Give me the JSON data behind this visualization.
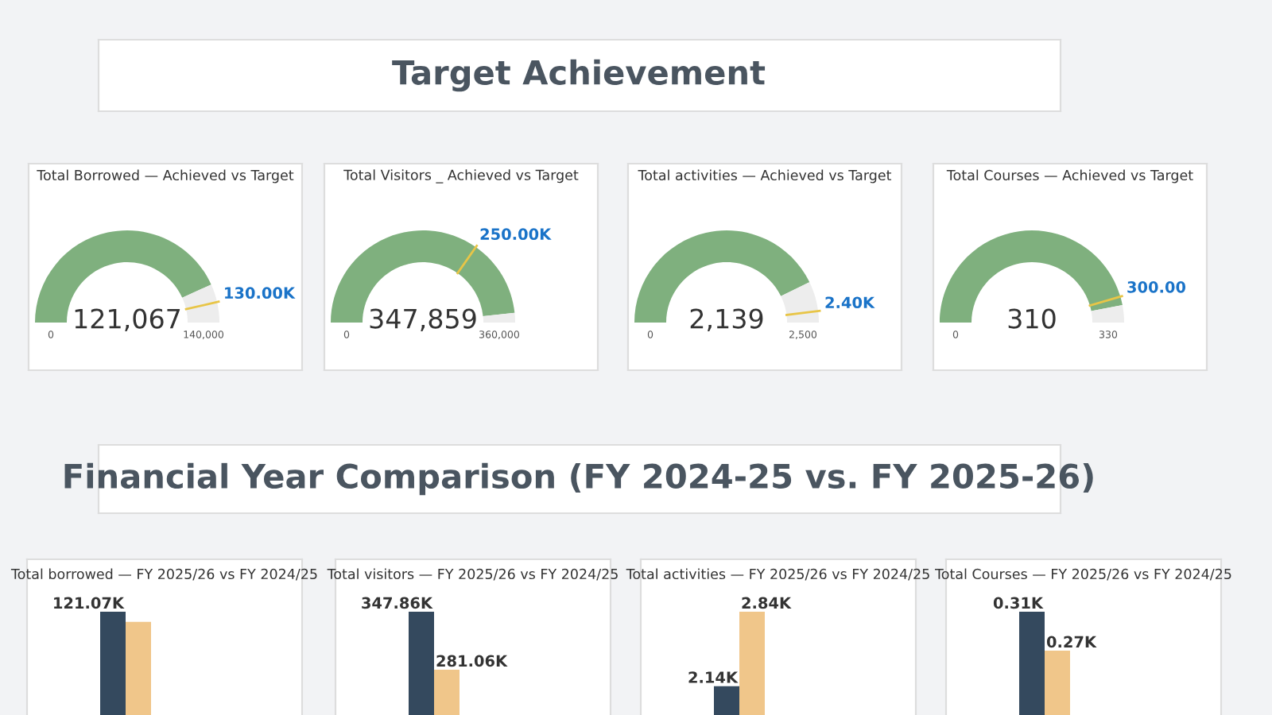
{
  "chart_data": [
    {
      "type": "other",
      "title": "Target Achievement"
    },
    {
      "type": "donut",
      "title": "Total Borrowed — Achieved vs Target",
      "categories": [
        null,
        null,
        null
      ],
      "values": [
        86.48,
        6.38,
        7.14
      ],
      "colors": [
        "#7fb07e",
        "#ededed",
        "#ededed"
      ],
      "annotations": [
        "121,067",
        "0",
        "140,000",
        "130.00K"
      ]
    },
    {
      "type": "donut",
      "title": "Total Visitors _ Achieved vs Target",
      "categories": [
        null,
        null,
        null
      ],
      "values": [
        69.44,
        27.19,
        3.37
      ],
      "colors": [
        "#7fb07e",
        "#7fb07e",
        "#ededed"
      ],
      "annotations": [
        "347,859",
        "0",
        "360,000",
        "250.00K"
      ]
    },
    {
      "type": "donut",
      "title": "Total activities — Achieved vs Target",
      "categories": [
        null,
        null,
        null
      ],
      "values": [
        85.56,
        10.44,
        4.0
      ],
      "colors": [
        "#7fb07e",
        "#ededed",
        "#ededed"
      ],
      "annotations": [
        "2,139",
        "0",
        "2,500",
        "2.40K"
      ]
    },
    {
      "type": "donut",
      "title": "Total Courses — Achieved vs Target",
      "categories": [
        null,
        null,
        null
      ],
      "values": [
        90.91,
        3.03,
        6.06
      ],
      "colors": [
        "#7fb07e",
        "#7fb07e",
        "#ededed"
      ],
      "annotations": [
        "310",
        "0",
        "330",
        "300.00"
      ]
    },
    {
      "type": "other",
      "title": "Financial Year Comparison (FY 2024-25 vs. FY 2025-26)"
    },
    {
      "type": "bar",
      "title": "Total borrowed — FY 2025/26 vs FY 2024/25",
      "categories": [
        null
      ],
      "tick_labels": false,
      "series": [
        {
          "color": "#34495e",
          "values": [
            121.07
          ],
          "value_labels": [
            "121.07K"
          ]
        },
        {
          "color": "#f0c68a",
          "values": [
            117
          ],
          "value_labels": [
            null
          ]
        }
      ]
    },
    {
      "type": "bar",
      "title": "Total visitors — FY 2025/26 vs FY 2024/25",
      "categories": [
        null
      ],
      "tick_labels": false,
      "series": [
        {
          "color": "#34495e",
          "values": [
            347.86
          ],
          "value_labels": [
            "347.86K"
          ]
        },
        {
          "color": "#f0c68a",
          "values": [
            281.06
          ],
          "value_labels": [
            "281.06K"
          ]
        }
      ]
    },
    {
      "type": "bar",
      "title": "Total activities — FY 2025/26 vs FY 2024/25",
      "categories": [
        null
      ],
      "tick_labels": false,
      "series": [
        {
          "color": "#34495e",
          "values": [
            2.14
          ],
          "value_labels": [
            "2.14K"
          ]
        },
        {
          "color": "#f0c68a",
          "values": [
            2.84
          ],
          "value_labels": [
            "2.84K"
          ]
        }
      ]
    },
    {
      "type": "bar",
      "title": "Total Courses — FY 2025/26 vs FY 2024/25",
      "categories": [
        null
      ],
      "tick_labels": false,
      "series": [
        {
          "color": "#34495e",
          "values": [
            0.31
          ],
          "value_labels": [
            "0.31K"
          ]
        },
        {
          "color": "#f0c68a",
          "values": [
            0.27
          ],
          "value_labels": [
            "0.27K"
          ]
        }
      ]
    }
  ]
}
